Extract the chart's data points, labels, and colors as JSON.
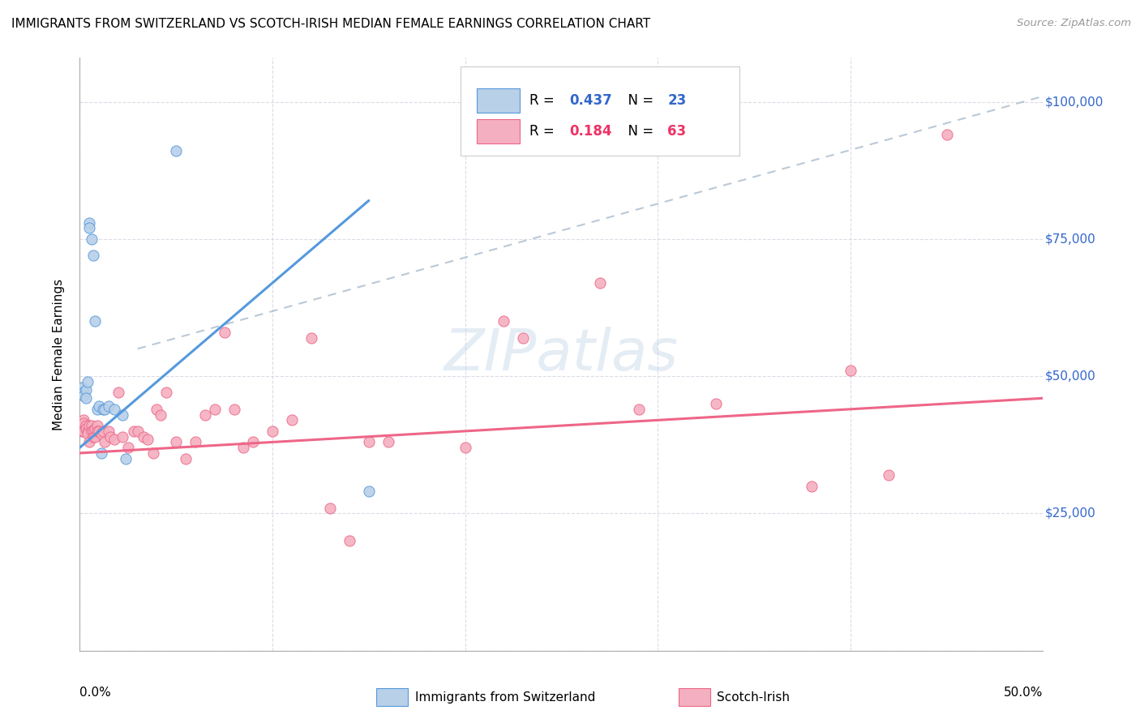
{
  "title": "IMMIGRANTS FROM SWITZERLAND VS SCOTCH-IRISH MEDIAN FEMALE EARNINGS CORRELATION CHART",
  "source": "Source: ZipAtlas.com",
  "ylabel": "Median Female Earnings",
  "xmin": 0.0,
  "xmax": 0.5,
  "ymin": 0,
  "ymax": 108000,
  "color_swiss": "#b8d0e8",
  "color_scotch": "#f4b0c0",
  "color_swiss_line": "#5599dd",
  "color_scotch_line": "#ee6688",
  "color_ytick": "#3366cc",
  "watermark": "ZIPatlas",
  "swiss_scatter": [
    [
      0.001,
      47000
    ],
    [
      0.001,
      48000
    ],
    [
      0.002,
      47000
    ],
    [
      0.002,
      46500
    ],
    [
      0.003,
      47500
    ],
    [
      0.003,
      46000
    ],
    [
      0.004,
      49000
    ],
    [
      0.005,
      78000
    ],
    [
      0.005,
      77000
    ],
    [
      0.006,
      75000
    ],
    [
      0.007,
      72000
    ],
    [
      0.008,
      60000
    ],
    [
      0.009,
      44000
    ],
    [
      0.01,
      44500
    ],
    [
      0.011,
      36000
    ],
    [
      0.012,
      44000
    ],
    [
      0.013,
      44000
    ],
    [
      0.015,
      44500
    ],
    [
      0.018,
      44000
    ],
    [
      0.022,
      43000
    ],
    [
      0.024,
      35000
    ],
    [
      0.05,
      91000
    ],
    [
      0.15,
      29000
    ]
  ],
  "scotch_scatter": [
    [
      0.001,
      40000
    ],
    [
      0.001,
      41000
    ],
    [
      0.002,
      42000
    ],
    [
      0.002,
      40000
    ],
    [
      0.002,
      41500
    ],
    [
      0.003,
      41000
    ],
    [
      0.003,
      40500
    ],
    [
      0.004,
      40000
    ],
    [
      0.004,
      39500
    ],
    [
      0.005,
      41000
    ],
    [
      0.005,
      38000
    ],
    [
      0.006,
      41000
    ],
    [
      0.006,
      40000
    ],
    [
      0.007,
      40000
    ],
    [
      0.007,
      39000
    ],
    [
      0.008,
      40500
    ],
    [
      0.008,
      39000
    ],
    [
      0.009,
      41000
    ],
    [
      0.009,
      40000
    ],
    [
      0.01,
      40000
    ],
    [
      0.011,
      39500
    ],
    [
      0.012,
      40000
    ],
    [
      0.013,
      38000
    ],
    [
      0.015,
      40000
    ],
    [
      0.016,
      39000
    ],
    [
      0.018,
      38500
    ],
    [
      0.02,
      47000
    ],
    [
      0.022,
      39000
    ],
    [
      0.025,
      37000
    ],
    [
      0.028,
      40000
    ],
    [
      0.03,
      40000
    ],
    [
      0.033,
      39000
    ],
    [
      0.035,
      38500
    ],
    [
      0.038,
      36000
    ],
    [
      0.04,
      44000
    ],
    [
      0.042,
      43000
    ],
    [
      0.045,
      47000
    ],
    [
      0.05,
      38000
    ],
    [
      0.055,
      35000
    ],
    [
      0.06,
      38000
    ],
    [
      0.065,
      43000
    ],
    [
      0.07,
      44000
    ],
    [
      0.075,
      58000
    ],
    [
      0.08,
      44000
    ],
    [
      0.085,
      37000
    ],
    [
      0.09,
      38000
    ],
    [
      0.1,
      40000
    ],
    [
      0.11,
      42000
    ],
    [
      0.12,
      57000
    ],
    [
      0.13,
      26000
    ],
    [
      0.14,
      20000
    ],
    [
      0.15,
      38000
    ],
    [
      0.16,
      38000
    ],
    [
      0.2,
      37000
    ],
    [
      0.22,
      60000
    ],
    [
      0.23,
      57000
    ],
    [
      0.27,
      67000
    ],
    [
      0.29,
      44000
    ],
    [
      0.33,
      45000
    ],
    [
      0.38,
      30000
    ],
    [
      0.4,
      51000
    ],
    [
      0.42,
      32000
    ],
    [
      0.45,
      94000
    ]
  ],
  "swiss_line_x": [
    0.0,
    0.15
  ],
  "swiss_line_y": [
    37000,
    82000
  ],
  "scotch_line_x": [
    0.0,
    0.5
  ],
  "scotch_line_y": [
    36000,
    46000
  ],
  "dash_line_x": [
    0.03,
    0.5
  ],
  "dash_line_y": [
    55000,
    101000
  ]
}
